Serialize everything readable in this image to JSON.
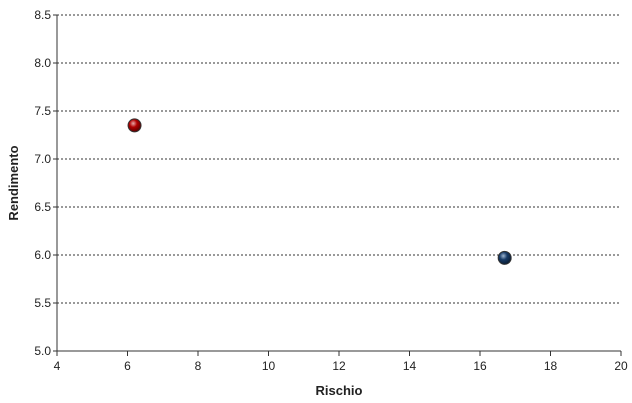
{
  "chart_data": {
    "type": "scatter",
    "title": "",
    "xlabel": "Rischio",
    "ylabel": "Rendimento",
    "xlim": [
      4,
      20
    ],
    "ylim": [
      5.0,
      8.5
    ],
    "x_ticks": [
      "4",
      "6",
      "8",
      "10",
      "12",
      "14",
      "16",
      "18",
      "20"
    ],
    "y_ticks": [
      "5.0",
      "5.5",
      "6.0",
      "6.5",
      "7.0",
      "7.5",
      "8.0",
      "8.5"
    ],
    "grid": "horizontal dotted",
    "legend": "none",
    "series": [
      {
        "points": [
          {
            "x": 6.2,
            "y": 7.35
          }
        ],
        "color": "#b00000"
      },
      {
        "points": [
          {
            "x": 16.7,
            "y": 5.97
          }
        ],
        "color": "#173a66"
      }
    ]
  }
}
